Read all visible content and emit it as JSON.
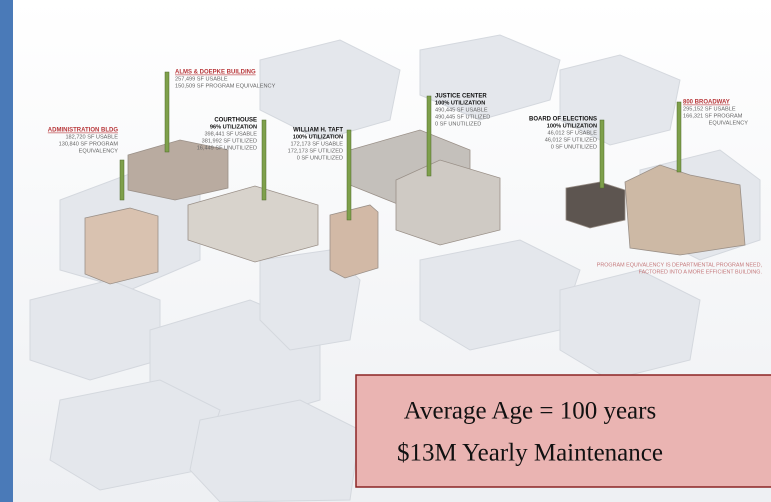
{
  "buildings": [
    {
      "name": "ALMS & DOEPKE BUILDING",
      "lines": [
        "257,499 SF USABLE",
        "150,509 SF PROGRAM EQUIVALENCY"
      ]
    },
    {
      "name": "ADMINISTRATION BLDG",
      "lines": [
        "182,720 SF USABLE",
        "130,840 SF PROGRAM",
        "EQUIVALENCY"
      ]
    },
    {
      "name": "COURTHOUSE",
      "lines": [
        "96% UTILIZATION",
        "398,441 SF USABLE",
        "381,992 SF UTILIZED",
        "16,449 SF UNUTILIZED"
      ]
    },
    {
      "name": "WILLIAM H. TAFT",
      "lines": [
        "100% UTILIZATION",
        "172,173 SF USABLE",
        "172,173 SF UTILIZED",
        "0 SF UNUTILIZED"
      ]
    },
    {
      "name": "JUSTICE CENTER",
      "lines": [
        "100% UTILIZATION",
        "490,445 SF USABLE",
        "490,445 SF UTILIZED",
        "0 SF UNUTILIZED"
      ]
    },
    {
      "name": "BOARD OF ELECTIONS",
      "lines": [
        "100% UTILIZATION",
        "46,012 SF USABLE",
        "46,012 SF UTILIZED",
        "0 SF UNUTILIZED"
      ]
    },
    {
      "name": "800 BROADWAY",
      "lines": [
        "295,152 SF USABLE",
        "166,321 SF PROGRAM",
        "EQUIVALENCY"
      ]
    }
  ],
  "note": [
    "PROGRAM EQUIVALENCY IS DEPARTMENTAL PROGRAM NEED,",
    "FACTORED INTO A MORE EFFICIENT BUILDING."
  ],
  "callout": [
    "Average Age = 100 years",
    "$13M Yearly Maintenance"
  ]
}
